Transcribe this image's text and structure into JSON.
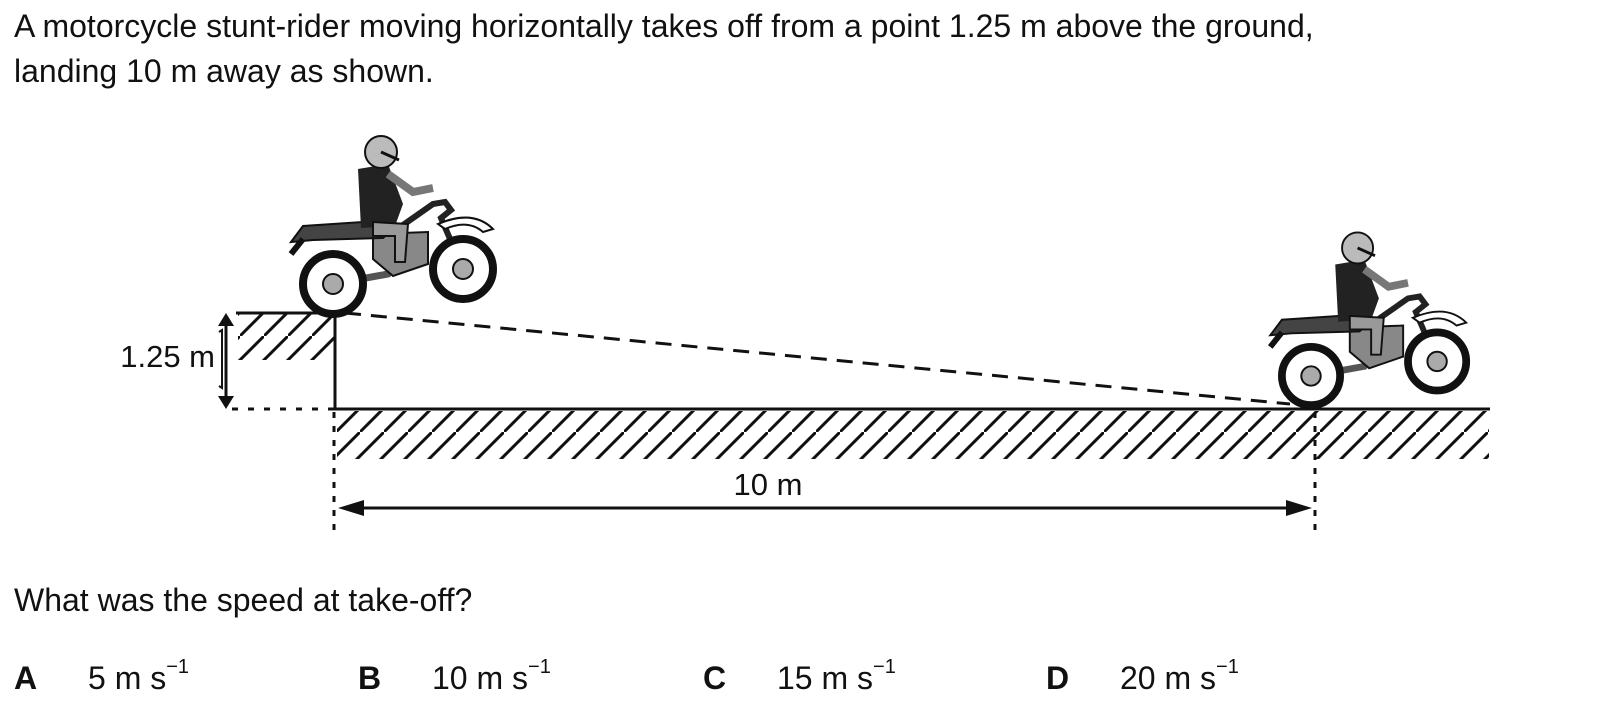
{
  "question": {
    "lines": [
      "A motorcycle stunt-rider moving horizontally takes off from a point 1.25 m above the ground,",
      "landing 10 m away as shown."
    ],
    "diagram": {
      "height_label": "1.25 m",
      "distance_label": "10 m"
    },
    "prompt": "What was the speed at take-off?",
    "options": [
      {
        "letter": "A",
        "text": "5 m s",
        "superscript": "−1"
      },
      {
        "letter": "B",
        "text": "10 m s",
        "superscript": "−1"
      },
      {
        "letter": "C",
        "text": "15 m s",
        "superscript": "−1"
      },
      {
        "letter": "D",
        "text": "20 m s",
        "superscript": "−1"
      }
    ]
  }
}
